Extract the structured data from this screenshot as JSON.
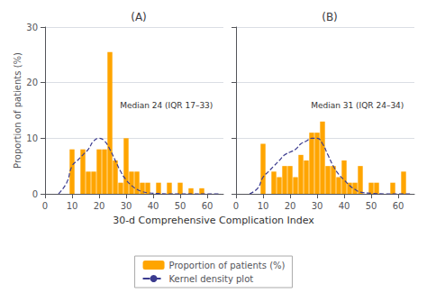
{
  "chart_data": [
    {
      "type": "bar",
      "title": "(A)",
      "xlabel": "30-d Comprehensive Complication Index",
      "ylabel": "Proportion of patients (%)",
      "xlim": [
        0,
        66
      ],
      "xticks": [
        0,
        10,
        20,
        30,
        40,
        50,
        60
      ],
      "ylim": [
        0,
        30
      ],
      "yticks": [
        0,
        10,
        20,
        30
      ],
      "grid": true,
      "legend": "bottom",
      "annotation": "Median 24 (IQR 17–33)",
      "series": [
        {
          "name": "Proportion of patients (%)",
          "type": "bar",
          "color": "#FFA500",
          "x": [
            8,
            10,
            12,
            14,
            16,
            18,
            20,
            22,
            24,
            26,
            28,
            30,
            32,
            34,
            36,
            38,
            40,
            42,
            44,
            46,
            48,
            50,
            52,
            54,
            56,
            58,
            60,
            62
          ],
          "values": [
            0,
            8,
            0,
            8,
            4,
            4,
            8,
            8,
            25.5,
            6,
            2,
            10,
            4,
            4,
            2,
            2,
            0,
            2,
            0,
            2,
            0,
            2,
            0,
            1,
            0,
            1,
            0,
            0
          ]
        },
        {
          "name": "Kernel density plot",
          "type": "line",
          "line_style": "dashed",
          "color": "#3B3B8F",
          "x": [
            5,
            8,
            10,
            12,
            14,
            16,
            18,
            20,
            22,
            24,
            26,
            28,
            30,
            32,
            34,
            36,
            38,
            40,
            42,
            45,
            50,
            55,
            60,
            65
          ],
          "values": [
            0,
            2,
            5,
            6,
            7,
            8,
            9.5,
            10,
            9.5,
            8,
            6,
            4,
            2.5,
            1.5,
            0.8,
            0.4,
            0.2,
            0.1,
            0.05,
            0,
            0,
            0,
            0,
            0
          ]
        }
      ]
    },
    {
      "type": "bar",
      "title": "(B)",
      "xlim": [
        0,
        66
      ],
      "xticks": [
        0,
        10,
        20,
        30,
        40,
        50,
        60
      ],
      "ylim": [
        0,
        30
      ],
      "yticks": [
        0,
        10,
        20,
        30
      ],
      "grid": true,
      "tick_labels": "x",
      "annotation": "Median 31 (IQR 24–34)",
      "series": [
        {
          "name": "Proportion of patients (%)",
          "type": "bar",
          "color": "#FFA500",
          "x": [
            8,
            10,
            12,
            14,
            16,
            18,
            20,
            22,
            24,
            26,
            28,
            30,
            32,
            34,
            36,
            38,
            40,
            42,
            44,
            46,
            48,
            50,
            52,
            54,
            56,
            58,
            60,
            62
          ],
          "values": [
            0,
            9,
            0,
            4,
            3,
            5,
            5,
            3,
            7,
            6,
            11,
            11,
            13,
            5,
            5,
            3,
            6,
            2,
            2,
            5,
            0,
            2,
            2,
            0,
            0,
            2,
            0,
            4
          ]
        },
        {
          "name": "Kernel density plot",
          "type": "line",
          "line_style": "dashed",
          "color": "#3B3B8F",
          "x": [
            5,
            8,
            10,
            12,
            14,
            16,
            18,
            20,
            22,
            24,
            26,
            28,
            30,
            32,
            34,
            36,
            38,
            40,
            42,
            44,
            46,
            50,
            55,
            60,
            65
          ],
          "values": [
            0,
            1,
            3,
            4,
            5,
            6,
            7,
            7.5,
            8,
            9,
            9.5,
            10,
            10,
            9,
            7,
            5,
            3.5,
            2.5,
            1.5,
            0.8,
            0.3,
            0.1,
            0,
            0,
            0
          ]
        }
      ]
    }
  ]
}
